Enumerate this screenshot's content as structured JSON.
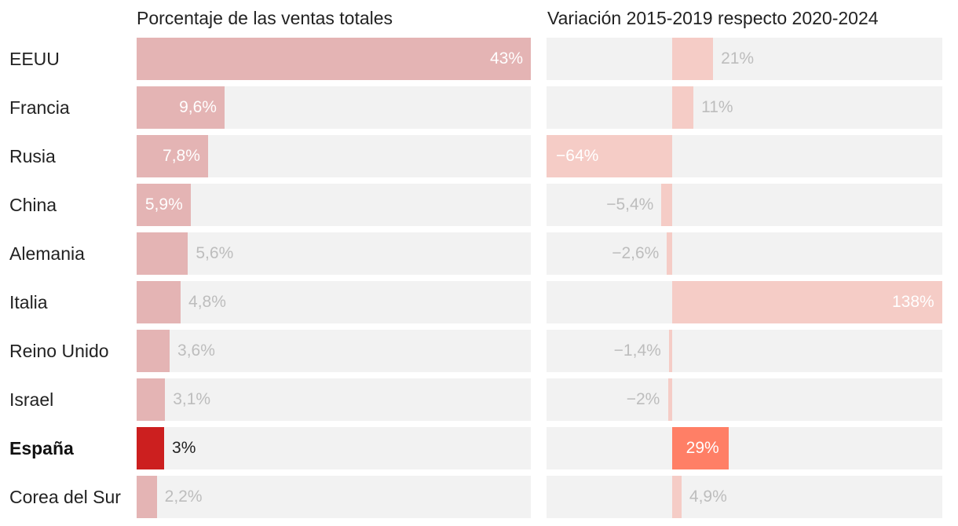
{
  "chart_data": {
    "type": "bar",
    "orientation": "horizontal",
    "categories": [
      "EEUU",
      "Francia",
      "Rusia",
      "China",
      "Alemania",
      "Italia",
      "Reino Unido",
      "Israel",
      "España",
      "Corea del Sur"
    ],
    "highlight": "España",
    "panels": [
      {
        "title": "Porcentaje de las ventas totales",
        "values": [
          43,
          9.6,
          7.8,
          5.9,
          5.6,
          4.8,
          3.6,
          3.1,
          3,
          2.2
        ],
        "labels": [
          "43%",
          "9,6%",
          "7,8%",
          "5,9%",
          "5,6%",
          "4,8%",
          "3,6%",
          "3,1%",
          "3%",
          "2,2%"
        ],
        "xlim": [
          0,
          43
        ]
      },
      {
        "title": "Variación 2015-2019 respecto 2020-2024",
        "values": [
          21,
          11,
          -64,
          -5.4,
          -2.6,
          138,
          -1.4,
          -2,
          29,
          4.9
        ],
        "labels": [
          "21%",
          "11%",
          "−64%",
          "−5,4%",
          "−2,6%",
          "138%",
          "−1,4%",
          "−2%",
          "29%",
          "4,9%"
        ],
        "xlim": [
          -64,
          138
        ]
      }
    ]
  },
  "colors": {
    "track": "#f2f2f2",
    "bar_left": "#e4b4b4",
    "bar_left_highlight": "#cc1f1f",
    "bar_right": "#f5ccc6",
    "bar_right_highlight": "#ff7f66",
    "label_muted": "#bdbdbd",
    "label_inside": "#ffffff",
    "label_dark": "#222222"
  }
}
